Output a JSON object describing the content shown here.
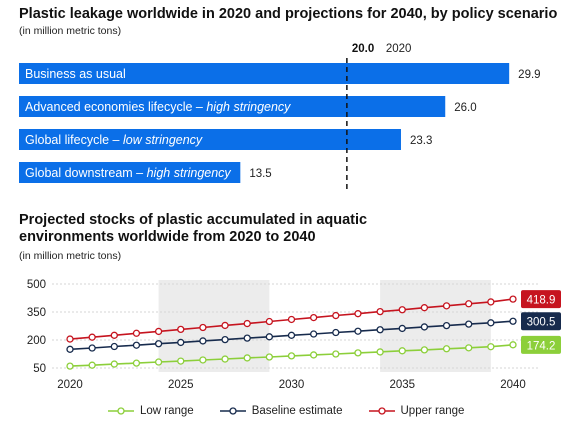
{
  "chart_data": [
    {
      "type": "bar",
      "orientation": "horizontal",
      "title": "Plastic leakage worldwide in 2020 and projections for 2040, by policy scenario",
      "subtitle": "(in million metric tons)",
      "categories": [
        {
          "name": "Business as usual",
          "suffix": ""
        },
        {
          "name": "Advanced economies lifecycle",
          "suffix": "high stringency"
        },
        {
          "name": "Global lifecycle",
          "suffix": "low stringency"
        },
        {
          "name": "Global downstream",
          "suffix": "high stringency"
        }
      ],
      "values": [
        29.9,
        26.0,
        23.3,
        13.5
      ],
      "value_labels": [
        "29.9",
        "26.0",
        "23.3",
        "13.5"
      ],
      "reference": {
        "value": 20.0,
        "value_label": "20.0",
        "label": "2020"
      },
      "xlim": [
        0,
        33
      ],
      "bar_color": "#0b6fe8"
    },
    {
      "type": "line",
      "title": "Projected stocks of plastic accumulated in aquatic environments worldwide from 2020 to 2040",
      "subtitle": "(in million metric tons)",
      "x": [
        2020,
        2021,
        2022,
        2023,
        2024,
        2025,
        2026,
        2027,
        2028,
        2029,
        2030,
        2031,
        2032,
        2033,
        2034,
        2035,
        2036,
        2037,
        2038,
        2039,
        2040
      ],
      "x_ticks": [
        2020,
        2025,
        2030,
        2035,
        2040
      ],
      "y_ticks": [
        50,
        200,
        350,
        500
      ],
      "ylim": [
        50,
        500
      ],
      "shaded_periods": [
        [
          2024,
          2029
        ],
        [
          2034,
          2039
        ]
      ],
      "grid": true,
      "legend": "bottom",
      "series": [
        {
          "name": "Low range",
          "color": "#8ccf3a",
          "values": [
            60,
            65,
            71,
            76,
            82,
            87,
            93,
            98,
            104,
            109,
            115,
            120,
            125,
            131,
            136,
            142,
            147,
            153,
            158,
            164,
            174.2
          ],
          "end_label": "174.2"
        },
        {
          "name": "Baseline estimate",
          "color": "#172b4d",
          "values": [
            150,
            157,
            165,
            172,
            180,
            187,
            195,
            202,
            210,
            217,
            225,
            232,
            240,
            247,
            255,
            262,
            270,
            277,
            285,
            292,
            300.5
          ],
          "end_label": "300.5"
        },
        {
          "name": "Upper range",
          "color": "#c6141f",
          "values": [
            205,
            215,
            225,
            236,
            246,
            257,
            267,
            278,
            288,
            299,
            310,
            320,
            331,
            341,
            352,
            362,
            373,
            383,
            394,
            404,
            418.9
          ],
          "end_label": "418.9"
        }
      ]
    }
  ]
}
